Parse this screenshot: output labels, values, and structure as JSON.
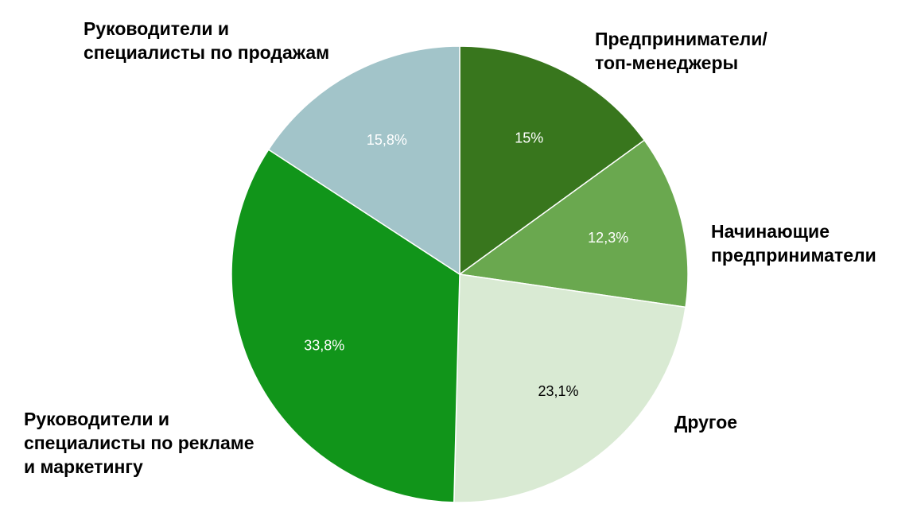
{
  "chart_data": {
    "type": "pie",
    "title": "",
    "slices": [
      {
        "label_lines": [
          "Предприниматели/",
          "топ-менеджеры"
        ],
        "value": 15,
        "value_label": "15%",
        "color": "#38761d",
        "value_label_color": "#ffffff"
      },
      {
        "label_lines": [
          "Начинающие",
          "предприниматели"
        ],
        "value": 12.3,
        "value_label": "12,3%",
        "color": "#6aa84f",
        "value_label_color": "#ffffff"
      },
      {
        "label_lines": [
          "Другое"
        ],
        "value": 23.1,
        "value_label": "23,1%",
        "color": "#d9ead3",
        "value_label_color": "#000000"
      },
      {
        "label_lines": [
          "Руководители и",
          "специалисты по рекламе",
          "и маркетингу"
        ],
        "value": 33.8,
        "value_label": "33,8%",
        "color": "#11951a",
        "value_label_color": "#ffffff"
      },
      {
        "label_lines": [
          "Руководители и",
          "специалисты по продажам"
        ],
        "value": 15.8,
        "value_label": "15,8%",
        "color": "#a2c4c9",
        "value_label_color": "#ffffff"
      }
    ],
    "start": "12 o'clock",
    "direction": "clockwise",
    "legend": "none"
  }
}
